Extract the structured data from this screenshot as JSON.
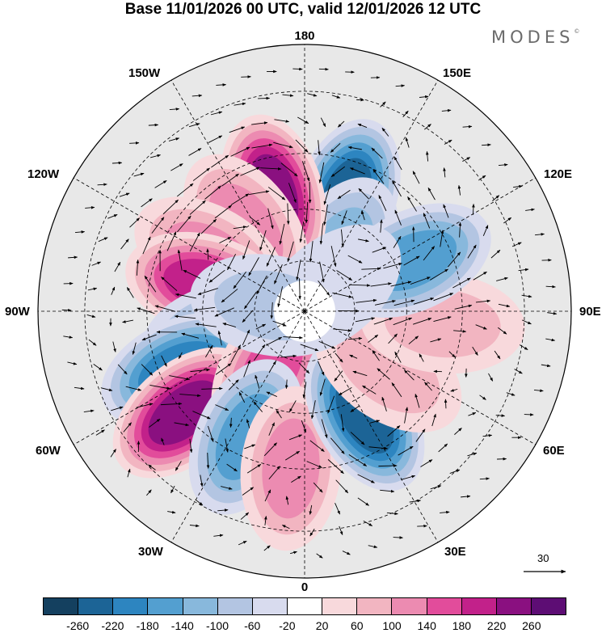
{
  "title": "Base 11/01/2026 00 UTC, valid 12/01/2026 12 UTC",
  "brand": "MODES",
  "brand_mark": "©",
  "longitude_labels": {
    "top": "180",
    "bottom": "0",
    "left": "90W",
    "right": "90E",
    "upper_left_1": "150W",
    "upper_left_2": "120W",
    "upper_right_1": "150E",
    "upper_right_2": "120E",
    "lower_left_1": "60W",
    "lower_left_2": "30W",
    "lower_right_1": "60E",
    "lower_right_2": "30E"
  },
  "vector_scale": {
    "label": "30"
  },
  "colorbar": {
    "ticks": [
      "-260",
      "-220",
      "-180",
      "-140",
      "-100",
      "-60",
      "-20",
      "20",
      "60",
      "100",
      "140",
      "180",
      "220",
      "260"
    ],
    "colors": [
      "#14405f",
      "#1c6496",
      "#2d85c0",
      "#539fd0",
      "#88b8dc",
      "#b3c5e2",
      "#d8dbee",
      "#ffffff",
      "#f8d9dc",
      "#f2b5c1",
      "#ec8bb1",
      "#e24c9b",
      "#c2218a",
      "#8a1080",
      "#5d0d74"
    ]
  },
  "map_data": {
    "projection": "north-polar-stereographic",
    "field": "height anomaly with wind vectors",
    "anomalies": [
      {
        "lon": 160,
        "lat": 55,
        "value": -230
      },
      {
        "lon": 150,
        "lat": 70,
        "value": -110
      },
      {
        "lon": -165,
        "lat": 55,
        "value": 230
      },
      {
        "lon": -145,
        "lat": 60,
        "value": 110
      },
      {
        "lon": -120,
        "lat": 58,
        "value": 110
      },
      {
        "lon": -105,
        "lat": 60,
        "value": 180
      },
      {
        "lon": -75,
        "lat": 65,
        "value": -110
      },
      {
        "lon": -65,
        "lat": 50,
        "value": -190
      },
      {
        "lon": -50,
        "lat": 45,
        "value": 230
      },
      {
        "lon": -30,
        "lat": 70,
        "value": 150
      },
      {
        "lon": -25,
        "lat": 50,
        "value": -150
      },
      {
        "lon": -5,
        "lat": 45,
        "value": 120
      },
      {
        "lon": 30,
        "lat": 55,
        "value": -220
      },
      {
        "lon": 55,
        "lat": 60,
        "value": 60
      },
      {
        "lon": 85,
        "lat": 50,
        "value": 60
      },
      {
        "lon": 115,
        "lat": 55,
        "value": -150
      },
      {
        "lon": 130,
        "lat": 80,
        "value": -40
      },
      {
        "lon": -100,
        "lat": 80,
        "value": -60
      }
    ]
  }
}
